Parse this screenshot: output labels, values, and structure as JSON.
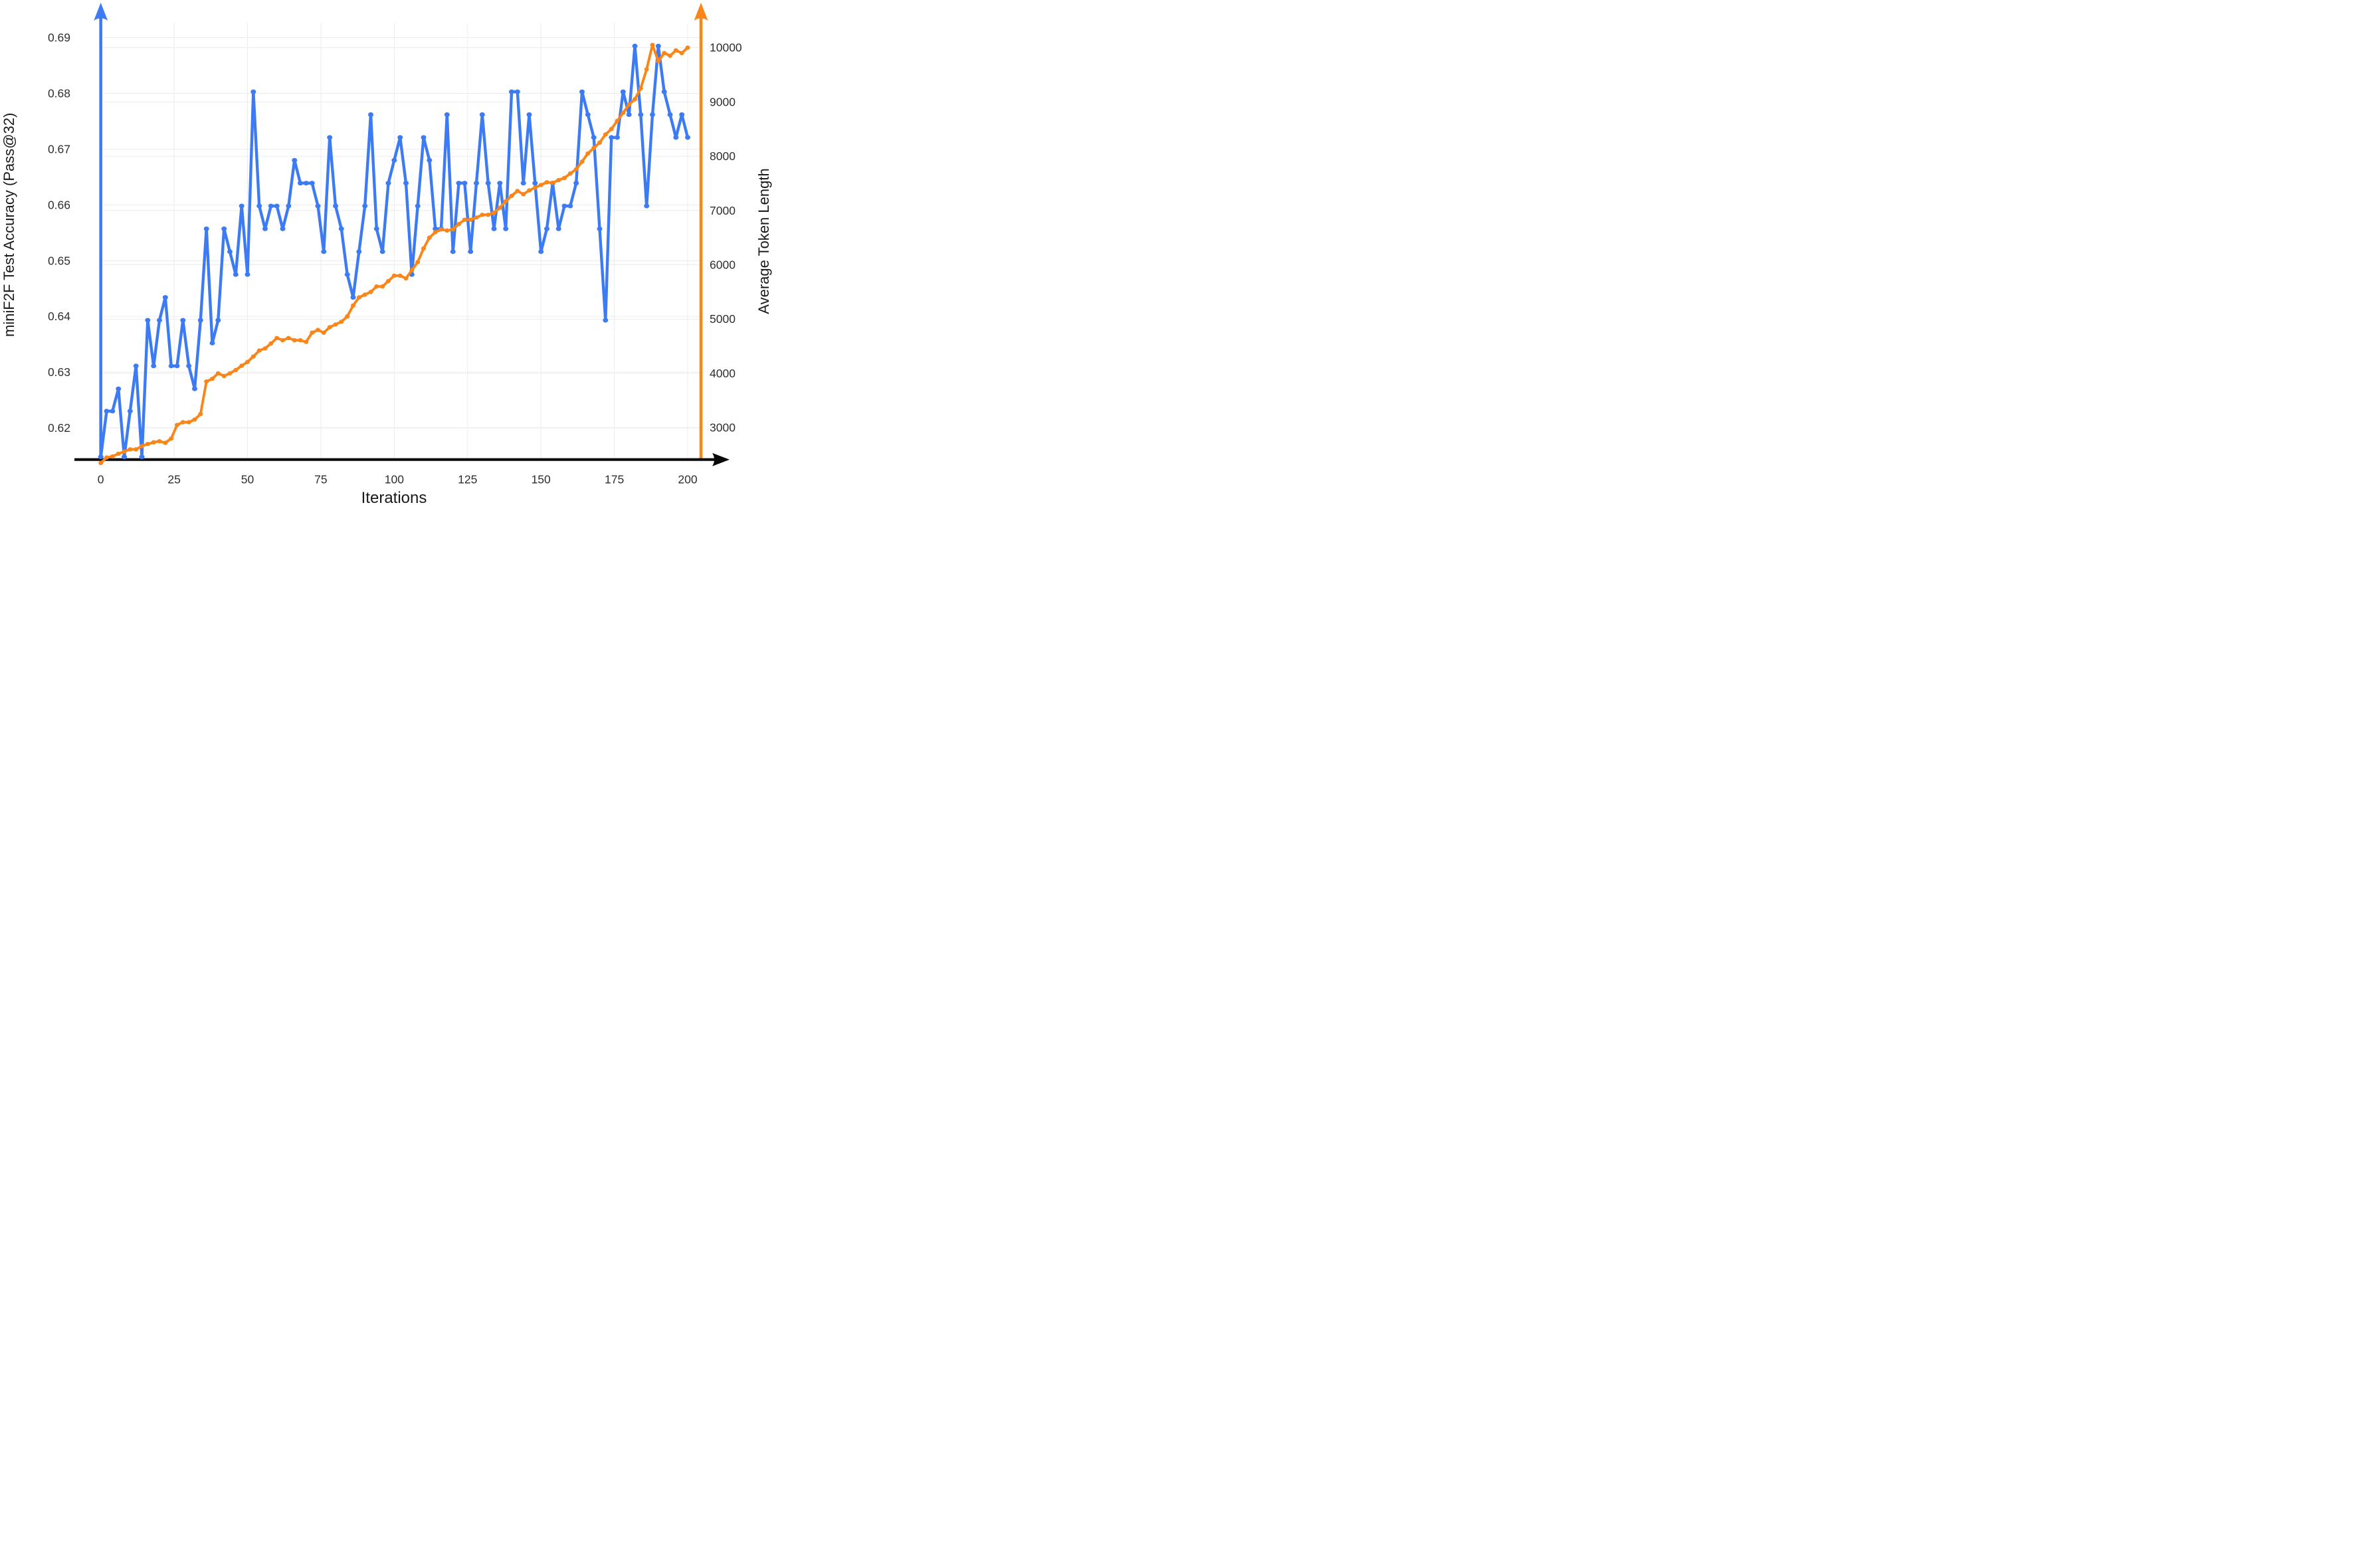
{
  "figure": {
    "x_axis_title": "Iterations",
    "left_axis_title": "miniF2F Test Accuracy (Pass@32)",
    "right_axis_title": "Average Token Length"
  },
  "colors": {
    "accuracy_blue": "#3d7bf5",
    "token_orange": "#fa8519",
    "x_axis_black": "#0a0a0a",
    "gridline_gray": "#ececec",
    "tick_text": "#2e2e2e"
  },
  "chart_data": {
    "type": "line",
    "title": "",
    "xlabel": "Iterations",
    "x_ticks": [
      0,
      25,
      50,
      75,
      100,
      125,
      150,
      175,
      200
    ],
    "left_axis": {
      "label": "miniF2F Test Accuracy (Pass@32)",
      "ticks": [
        "0.62",
        "0.63",
        "0.64",
        "0.65",
        "0.66",
        "0.67",
        "0.68",
        "0.69"
      ],
      "tick_values": [
        0.62,
        0.63,
        0.64,
        0.65,
        0.66,
        0.67,
        0.68,
        0.69
      ],
      "range": [
        0.6115,
        0.6945
      ]
    },
    "right_axis": {
      "label": "Average Token Length",
      "ticks": [
        "3000",
        "4000",
        "5000",
        "6000",
        "7000",
        "8000",
        "9000",
        "10000"
      ],
      "tick_values": [
        3000,
        4000,
        5000,
        6000,
        7000,
        8000,
        9000,
        10000
      ],
      "range": [
        2100,
        10600
      ]
    },
    "grid": true,
    "legend_position": "none",
    "series": [
      {
        "name": "miniF2F Test Accuracy (Pass@32)",
        "axis": "left",
        "color": "#3d7bf5",
        "x": [
          0,
          2,
          4,
          6,
          8,
          10,
          12,
          14,
          16,
          18,
          20,
          22,
          24,
          26,
          28,
          30,
          32,
          34,
          36,
          38,
          40,
          42,
          44,
          46,
          48,
          50,
          52,
          54,
          56,
          58,
          60,
          62,
          64,
          66,
          68,
          70,
          72,
          74,
          76,
          78,
          80,
          82,
          84,
          86,
          88,
          90,
          92,
          94,
          96,
          98,
          100,
          102,
          104,
          106,
          108,
          110,
          112,
          114,
          116,
          118,
          120,
          122,
          124,
          126,
          128,
          130,
          132,
          134,
          136,
          138,
          140,
          142,
          144,
          146,
          148,
          150,
          152,
          154,
          156,
          158,
          160,
          162,
          164,
          166,
          168,
          170,
          172,
          174,
          176,
          178,
          180,
          182,
          184,
          186,
          188,
          190,
          192,
          194,
          196,
          198,
          200
        ],
        "values": [
          0.6148,
          0.623,
          0.623,
          0.627,
          0.6148,
          0.623,
          0.6311,
          0.6148,
          0.6393,
          0.6311,
          0.6393,
          0.6434,
          0.6311,
          0.6311,
          0.6393,
          0.6311,
          0.627,
          0.6393,
          0.6557,
          0.6352,
          0.6393,
          0.6557,
          0.6516,
          0.6475,
          0.6598,
          0.6475,
          0.6803,
          0.6598,
          0.6557,
          0.6598,
          0.6598,
          0.6557,
          0.6598,
          0.668,
          0.6639,
          0.6639,
          0.6639,
          0.6598,
          0.6516,
          0.6721,
          0.6598,
          0.6557,
          0.6475,
          0.6434,
          0.6516,
          0.6598,
          0.6762,
          0.6557,
          0.6516,
          0.6639,
          0.668,
          0.6721,
          0.6639,
          0.6475,
          0.6598,
          0.6721,
          0.668,
          0.6557,
          0.6557,
          0.6762,
          0.6516,
          0.6639,
          0.6639,
          0.6516,
          0.6639,
          0.6762,
          0.6639,
          0.6557,
          0.6639,
          0.6557,
          0.6803,
          0.6803,
          0.6639,
          0.6762,
          0.6639,
          0.6516,
          0.6557,
          0.6639,
          0.6557,
          0.6598,
          0.6598,
          0.6639,
          0.6803,
          0.6762,
          0.6721,
          0.6557,
          0.6393,
          0.6721,
          0.6721,
          0.6803,
          0.6762,
          0.6885,
          0.6762,
          0.6598,
          0.6762,
          0.6885,
          0.6803,
          0.6762,
          0.6721,
          0.6762,
          0.6721
        ]
      },
      {
        "name": "Average Token Length",
        "axis": "right",
        "color": "#fa8519",
        "x": [
          0,
          2,
          4,
          6,
          8,
          10,
          12,
          14,
          16,
          18,
          20,
          22,
          24,
          26,
          28,
          30,
          32,
          34,
          36,
          38,
          40,
          42,
          44,
          46,
          48,
          50,
          52,
          54,
          56,
          58,
          60,
          62,
          64,
          66,
          68,
          70,
          72,
          74,
          76,
          78,
          80,
          82,
          84,
          86,
          88,
          90,
          92,
          94,
          96,
          98,
          100,
          102,
          104,
          106,
          108,
          110,
          112,
          114,
          116,
          118,
          120,
          122,
          124,
          126,
          128,
          130,
          132,
          134,
          136,
          138,
          140,
          142,
          144,
          146,
          148,
          150,
          152,
          154,
          156,
          158,
          160,
          162,
          164,
          166,
          168,
          170,
          172,
          174,
          176,
          178,
          180,
          182,
          184,
          186,
          188,
          190,
          192,
          194,
          196,
          198,
          200
        ],
        "values": [
          2350,
          2450,
          2470,
          2520,
          2560,
          2600,
          2600,
          2660,
          2700,
          2730,
          2750,
          2720,
          2800,
          3050,
          3100,
          3100,
          3150,
          3250,
          3850,
          3900,
          4000,
          3950,
          4000,
          4060,
          4140,
          4210,
          4310,
          4420,
          4460,
          4550,
          4650,
          4610,
          4650,
          4610,
          4610,
          4580,
          4750,
          4800,
          4750,
          4850,
          4900,
          4950,
          5050,
          5250,
          5400,
          5450,
          5500,
          5600,
          5600,
          5700,
          5800,
          5800,
          5750,
          5900,
          6050,
          6300,
          6500,
          6600,
          6650,
          6630,
          6650,
          6750,
          6830,
          6830,
          6870,
          6920,
          6920,
          6960,
          7050,
          7170,
          7270,
          7360,
          7300,
          7370,
          7420,
          7470,
          7520,
          7510,
          7560,
          7600,
          7680,
          7760,
          7900,
          8050,
          8150,
          8250,
          8400,
          8500,
          8650,
          8800,
          8950,
          9050,
          9250,
          9600,
          10050,
          9750,
          9900,
          9850,
          9950,
          9900,
          10000
        ]
      }
    ]
  }
}
